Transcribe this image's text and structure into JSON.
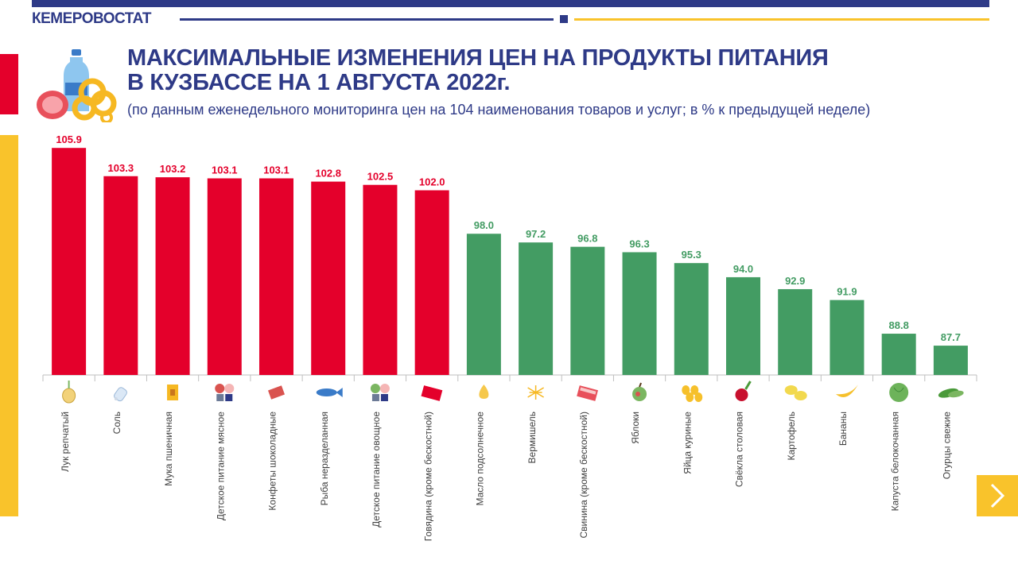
{
  "header": {
    "brand": "КЕМЕРОВОСТАТ",
    "title_line1": "МАКСИМАЛЬНЫЕ ИЗМЕНЕНИЯ ЦЕН НА ПРОДУКТЫ ПИТАНИЯ",
    "title_line2": "В КУЗБАССЕ НА 1 АВГУСТА 2022г.",
    "subtitle": "(по данным  еженедельного  мониторинга  цен на 104 наименования  товаров и услуг; в % к предыдущей  неделе)"
  },
  "colors": {
    "brand_blue": "#2e3a87",
    "accent_yellow": "#f9c32b",
    "increase_red": "#e4002b",
    "decrease_green": "#439c63"
  },
  "chart_data": {
    "type": "bar",
    "title": "",
    "xlabel": "",
    "ylabel": "",
    "ylim": [
      85,
      106.5
    ],
    "grid": false,
    "categories": [
      "Лук репчатый",
      "Соль",
      "Мука пшеничная",
      "Детское питание  мясное",
      "Конфеты  шоколадные",
      "Рыба неразделанная",
      "Детское питание  овощное",
      "Говядина (кроме бескостной)",
      "Масло подсолнечное",
      "Вермишель",
      "Свинина (кроме  бескостной)",
      "Яблоки",
      "Яйца куриные",
      "Свёкла  столовая",
      "Картофель",
      "Бананы",
      "Капуста белокочанная",
      "Огурцы свежие"
    ],
    "values": [
      105.9,
      103.3,
      103.2,
      103.1,
      103.1,
      102.8,
      102.5,
      102.0,
      98.0,
      97.2,
      96.8,
      96.3,
      95.3,
      94.0,
      92.9,
      91.9,
      88.8,
      87.7
    ],
    "value_labels": [
      "105.9",
      "103.3",
      "103.2",
      "103.1",
      "103.1",
      "102.8",
      "102.5",
      "102.0",
      "98.0",
      "97.2",
      "96.8",
      "96.3",
      "95.3",
      "94.0",
      "92.9",
      "91.9",
      "88.8",
      "87.7"
    ],
    "icons": [
      "onion-icon",
      "salt-shaker-icon",
      "flour-bag-icon",
      "baby-food-meat-icon",
      "chocolate-candy-icon",
      "fish-icon",
      "baby-food-vegetable-icon",
      "beef-icon",
      "oil-drop-icon",
      "vermicelli-icon",
      "pork-icon",
      "apple-icon",
      "eggs-icon",
      "beetroot-icon",
      "potato-icon",
      "banana-icon",
      "cabbage-icon",
      "cucumber-icon"
    ]
  }
}
